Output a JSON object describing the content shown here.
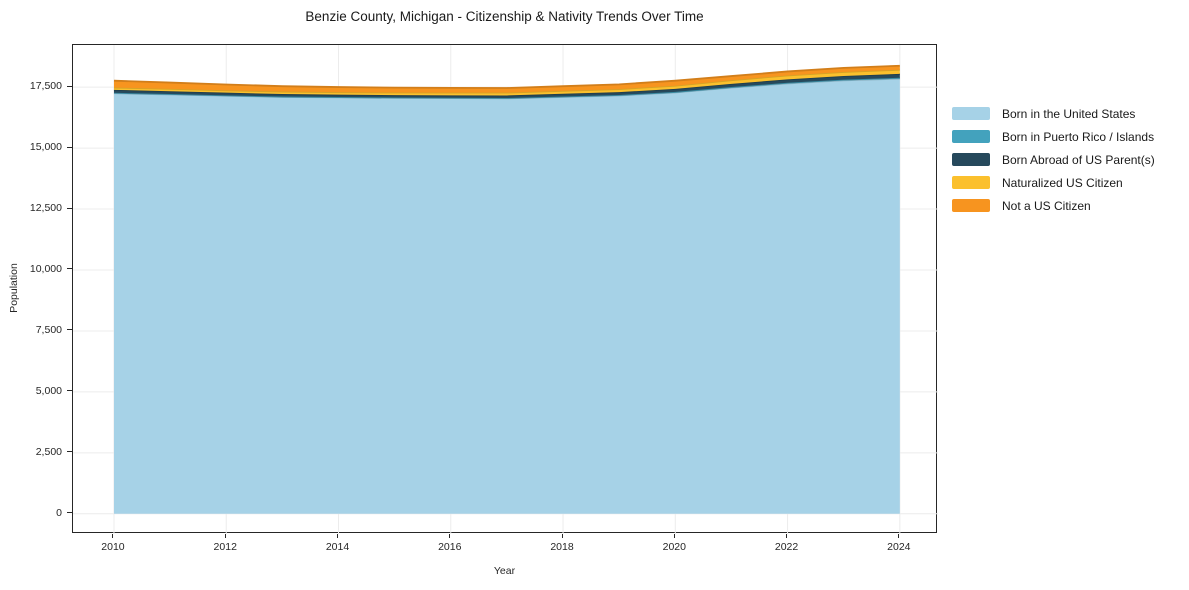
{
  "chart_data": {
    "type": "area",
    "stacked": true,
    "title": "Benzie County, Michigan - Citizenship & Nativity Trends Over Time",
    "xlabel": "Year",
    "ylabel": "Population",
    "x": [
      2010,
      2011,
      2012,
      2013,
      2014,
      2015,
      2016,
      2017,
      2018,
      2019,
      2020,
      2021,
      2022,
      2023,
      2024
    ],
    "series": [
      {
        "name": "Born in the United States",
        "color": "#a6d2e7",
        "values": [
          17250,
          17200,
          17150,
          17100,
          17080,
          17060,
          17050,
          17040,
          17100,
          17160,
          17280,
          17480,
          17650,
          17780,
          17850
        ]
      },
      {
        "name": "Born in Puerto Rico / Islands",
        "color": "#43a2bd",
        "values": [
          20,
          20,
          15,
          15,
          15,
          15,
          15,
          15,
          20,
          20,
          25,
          25,
          30,
          30,
          35
        ]
      },
      {
        "name": "Born Abroad of US Parent(s)",
        "color": "#26495c",
        "values": [
          120,
          115,
          110,
          105,
          100,
          100,
          100,
          105,
          110,
          115,
          125,
          130,
          140,
          150,
          160
        ]
      },
      {
        "name": "Naturalized US Citizen",
        "color": "#fbc02d",
        "values": [
          95,
          95,
          95,
          100,
          100,
          105,
          110,
          115,
          120,
          125,
          130,
          150,
          160,
          165,
          170
        ]
      },
      {
        "name": "Not a US Citizen",
        "color": "#f7941f",
        "values": [
          280,
          260,
          240,
          220,
          210,
          200,
          195,
          190,
          190,
          195,
          205,
          170,
          165,
          165,
          165
        ]
      }
    ],
    "xticks": [
      2010,
      2012,
      2014,
      2016,
      2018,
      2020,
      2022,
      2024
    ],
    "ytick_values": [
      0,
      2500,
      5000,
      7500,
      10000,
      12500,
      15000,
      17500
    ],
    "ytick_labels": [
      "0",
      "2,500",
      "5,000",
      "7,500",
      "10,000",
      "12,500",
      "15,000",
      "17,500"
    ],
    "xlim": [
      2009.27,
      2024.68
    ],
    "ylim": [
      -830,
      19230
    ],
    "grid": true,
    "grid_color": "#ececec",
    "axis_color": "#262626",
    "legend_position": "right"
  }
}
